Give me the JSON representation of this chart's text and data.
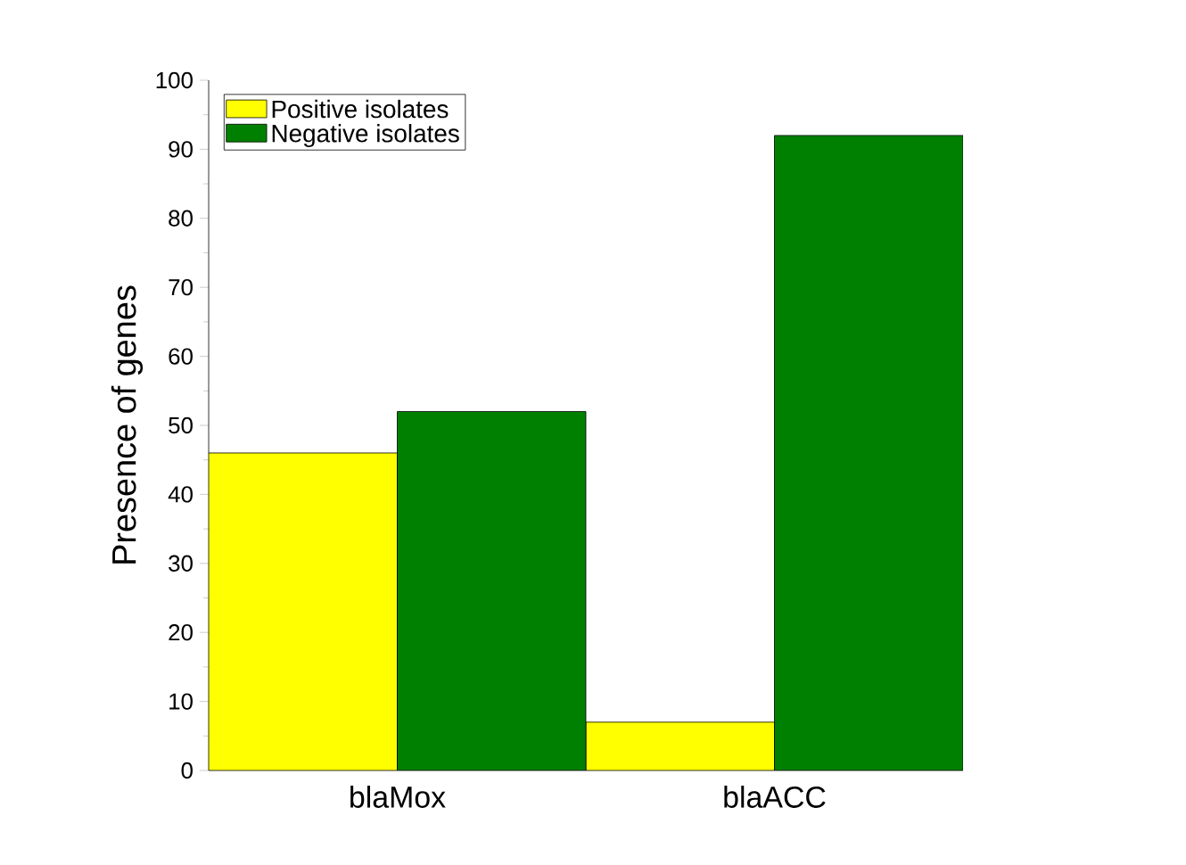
{
  "chart_data": {
    "type": "bar",
    "ylabel": "Presence of genes",
    "categories": [
      "blaMox",
      "blaACC"
    ],
    "series": [
      {
        "name": "Positive isolates",
        "color": "#ffff00",
        "values": [
          46,
          7
        ]
      },
      {
        "name": "Negative isolates",
        "color": "#008000",
        "values": [
          52,
          92
        ]
      }
    ],
    "ylim": [
      0,
      100
    ],
    "yticks": [
      0,
      10,
      20,
      30,
      40,
      50,
      60,
      70,
      80,
      90,
      100
    ],
    "grid": false,
    "legend": "top left"
  }
}
